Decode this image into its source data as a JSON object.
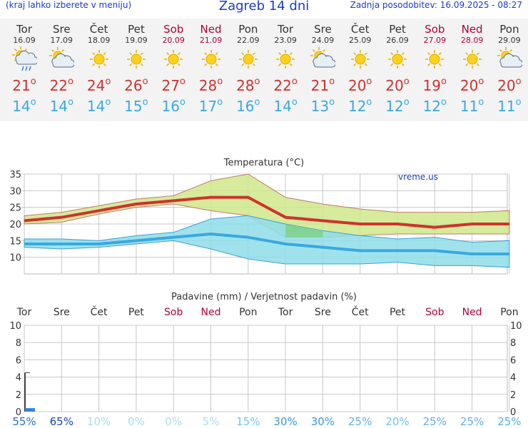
{
  "header": {
    "left_note": "(kraj lahko izberete v meniju)",
    "title": "Zagreb 14 dni",
    "updated": "Zadnja posodobitev: 16.09.2025 - 08:27"
  },
  "degree_symbol": "o",
  "days": [
    {
      "name": "Tor",
      "date": "16.09",
      "weekend": false,
      "icon": "sun-cloud-rain-icon",
      "max": "21",
      "min": "14"
    },
    {
      "name": "Sre",
      "date": "17.09",
      "weekend": false,
      "icon": "sun-cloud-icon",
      "max": "22",
      "min": "14"
    },
    {
      "name": "Čet",
      "date": "18.09",
      "weekend": false,
      "icon": "sun-icon",
      "max": "24",
      "min": "14"
    },
    {
      "name": "Pet",
      "date": "19.09",
      "weekend": false,
      "icon": "sun-icon",
      "max": "26",
      "min": "15"
    },
    {
      "name": "Sob",
      "date": "20.09",
      "weekend": true,
      "icon": "sun-icon",
      "max": "27",
      "min": "16"
    },
    {
      "name": "Ned",
      "date": "21.09",
      "weekend": true,
      "icon": "sun-icon",
      "max": "28",
      "min": "17"
    },
    {
      "name": "Pon",
      "date": "22.09",
      "weekend": false,
      "icon": "sun-icon",
      "max": "28",
      "min": "16"
    },
    {
      "name": "Tor",
      "date": "23.09",
      "weekend": false,
      "icon": "sun-icon",
      "max": "22",
      "min": "14"
    },
    {
      "name": "Sre",
      "date": "24.09",
      "weekend": false,
      "icon": "sun-cloud-icon",
      "max": "21",
      "min": "13"
    },
    {
      "name": "Čet",
      "date": "25.09",
      "weekend": false,
      "icon": "sun-icon",
      "max": "20",
      "min": "12"
    },
    {
      "name": "Pet",
      "date": "26.09",
      "weekend": false,
      "icon": "sun-icon",
      "max": "20",
      "min": "12"
    },
    {
      "name": "Sob",
      "date": "27.09",
      "weekend": true,
      "icon": "sun-icon",
      "max": "19",
      "min": "12"
    },
    {
      "name": "Ned",
      "date": "28.09",
      "weekend": true,
      "icon": "sun-icon",
      "max": "20",
      "min": "11"
    },
    {
      "name": "Pon",
      "date": "29.09",
      "weekend": false,
      "icon": "sun-cloud-icon",
      "max": "20",
      "min": "11"
    }
  ],
  "colors": {
    "max_line": "#d0312d",
    "min_line": "#3aa8e0",
    "max_band": "#cfe88a",
    "min_band": "#8fdde9",
    "overlap_band": "#7dcf85",
    "weekend_label": "#b0003a",
    "rain_bar": "#2f86e0",
    "grid": "#c8c8c8"
  },
  "chart_data": [
    {
      "type": "area",
      "title": "Temperatura (°C)",
      "watermark": "vreme.us",
      "categories": [
        "16.09",
        "17.09",
        "18.09",
        "19.09",
        "20.09",
        "21.09",
        "22.09",
        "23.09",
        "24.09",
        "25.09",
        "26.09",
        "27.09",
        "28.09",
        "29.09"
      ],
      "ylim": [
        5,
        35
      ],
      "yticks": [
        10,
        15,
        20,
        25,
        30,
        35
      ],
      "grid": true,
      "series": [
        {
          "role": "max",
          "values": [
            21,
            22,
            24,
            26,
            27,
            28,
            28,
            22,
            21,
            20,
            20,
            19,
            20,
            20
          ]
        },
        {
          "role": "min",
          "values": [
            14,
            14,
            14,
            15,
            16,
            17,
            16,
            14,
            13,
            12,
            12,
            12,
            11,
            11
          ]
        }
      ],
      "max_range": {
        "low": [
          20,
          20.5,
          23,
          25,
          26,
          24,
          22.5,
          16,
          16,
          16.5,
          17,
          17,
          17,
          17
        ],
        "high": [
          22.5,
          23.5,
          25.5,
          27.5,
          28.5,
          33,
          35,
          28,
          26,
          24.5,
          23.5,
          23.5,
          23.5,
          24
        ]
      },
      "min_range": {
        "low": [
          13,
          12.5,
          13,
          14,
          15,
          12.5,
          9.5,
          8,
          8,
          8,
          8.5,
          7.5,
          7.5,
          7
        ],
        "high": [
          15.5,
          15.5,
          15,
          16.5,
          17.5,
          21.5,
          22.5,
          20,
          18,
          16.5,
          15.5,
          16,
          14.5,
          15
        ]
      }
    },
    {
      "type": "bar",
      "title": "Padavine (mm) / Verjetnost padavin (%)",
      "categories": [
        "Tor",
        "Sre",
        "Čet",
        "Pet",
        "Sob",
        "Ned",
        "Pon",
        "Tor",
        "Sre",
        "Čet",
        "Pet",
        "Sob",
        "Ned",
        "Pon"
      ],
      "weekend": [
        false,
        false,
        false,
        false,
        true,
        true,
        false,
        false,
        false,
        false,
        false,
        true,
        true,
        false
      ],
      "ylim": [
        0,
        10
      ],
      "yticks": [
        0,
        2,
        4,
        6,
        8,
        10
      ],
      "values": [
        0.4,
        0,
        0,
        0,
        0,
        0,
        0,
        0,
        0,
        0,
        0,
        0,
        0,
        0
      ],
      "range_high": [
        4.5,
        0,
        0,
        0,
        0,
        0,
        0,
        0,
        0,
        0,
        0,
        0,
        0,
        0
      ],
      "probability": [
        "55%",
        "65%",
        "10%",
        "0%",
        "0%",
        "5%",
        "15%",
        "30%",
        "30%",
        "25%",
        "20%",
        "25%",
        "25%",
        "25%"
      ],
      "probability_colors": [
        "#2c6fd0",
        "#1a47b8",
        "#a9dcf2",
        "#a9dcf2",
        "#a9dcf2",
        "#a9dcf2",
        "#74c4ee",
        "#3c96e0",
        "#3c96e0",
        "#5db0ea",
        "#74c4ee",
        "#5db0ea",
        "#5db0ea",
        "#5db0ea"
      ]
    }
  ]
}
